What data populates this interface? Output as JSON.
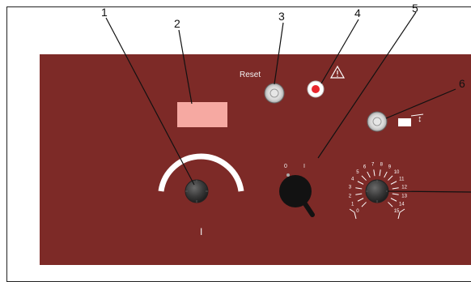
{
  "callouts": {
    "n1": "1",
    "n2": "2",
    "n3": "3",
    "n4": "4",
    "n5": "5",
    "n6": "6"
  },
  "panel": {
    "reset_label": "Reset",
    "arc_knob_label": "I",
    "switch_off": "0",
    "switch_on": "I",
    "height_symbol_arrow": "↕",
    "dial_ticks": [
      "0",
      "1",
      "2",
      "3",
      "4",
      "5",
      "6",
      "7",
      "8",
      "9",
      "10",
      "11",
      "12",
      "13",
      "14",
      "15"
    ]
  },
  "colors": {
    "panel": "#7d2a27",
    "display": "#f6a9a2",
    "warning_lamp": "#e8262d"
  }
}
